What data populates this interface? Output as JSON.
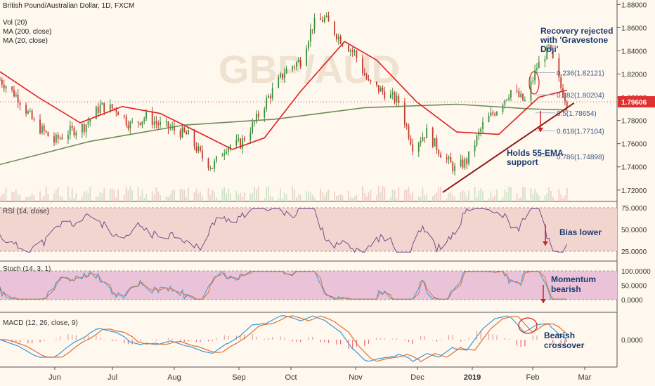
{
  "header": {
    "symbol_line": "British Pound/Australian Dollar, 1D, FXCM",
    "indicators": [
      "Vol (20)",
      "MA (200, close)",
      "MA (20, close)"
    ]
  },
  "watermark": "GBP/AUD",
  "price_axis": {
    "ticks": [
      "1.88000",
      "1.86000",
      "1.84000",
      "1.82000",
      "1.80000",
      "1.78000",
      "1.76000",
      "1.74000",
      "1.72000"
    ]
  },
  "last_price": {
    "value": "1.79606",
    "color": "#e03030"
  },
  "fib_labels": [
    {
      "label": "0.236(1.82121)",
      "value": 1.82121
    },
    {
      "label": "0.382(1.80204)",
      "value": 1.80204
    },
    {
      "label": "0.5(1.78654)",
      "value": 1.78654
    },
    {
      "label": "0.618(1.77104)",
      "value": 1.77104
    },
    {
      "label": "0.786(1.74898)",
      "value": 1.74898
    }
  ],
  "annotations": {
    "recovery": [
      "Recovery rejected",
      "with 'Gravestone",
      "Doji'"
    ],
    "support": [
      "Holds 55-EMA",
      "support"
    ],
    "bias": "Bias lower",
    "momentum": [
      "Momentum",
      "bearish"
    ],
    "crossover": [
      "Bearish",
      "crossover"
    ]
  },
  "rsi_panel": {
    "title": "RSI (14, close)",
    "ticks": [
      "75.0000",
      "50.0000",
      "25.0000"
    ]
  },
  "stoch_panel": {
    "title": "Stoch (14, 3, 1)",
    "ticks": [
      "100.0000",
      "50.0000",
      "0.0000"
    ]
  },
  "macd_panel": {
    "title": "MACD (12, 26, close, 9)",
    "ticks": [
      "0.0000"
    ]
  },
  "time_axis": [
    "Jun",
    "Jul",
    "Aug",
    "Sep",
    "Oct",
    "Nov",
    "Dec",
    "2019",
    "Feb",
    "Mar"
  ],
  "colors": {
    "up": "#3c8c3c",
    "down": "#c0392b",
    "ma20": "#e02020",
    "ma200": "#6e8c5a",
    "rsi": "#7b4a8c",
    "stoch_k": "#3a9ad9",
    "stoch_d": "#e07030",
    "macd": "#3a9ad9",
    "signal": "#e07030",
    "annotation": "#1a3a6e"
  },
  "chart_data": {
    "type": "candlestick",
    "x_range": [
      "2018-05-01",
      "2019-03-05"
    ],
    "y_range": [
      1.712,
      1.882
    ],
    "close_series_approx": [
      [
        "2018-05-01",
        1.815
      ],
      [
        "2018-05-10",
        1.8
      ],
      [
        "2018-05-18",
        1.778
      ],
      [
        "2018-05-28",
        1.762
      ],
      [
        "2018-06-04",
        1.77
      ],
      [
        "2018-06-12",
        1.775
      ],
      [
        "2018-06-20",
        1.792
      ],
      [
        "2018-06-28",
        1.79
      ],
      [
        "2018-07-05",
        1.776
      ],
      [
        "2018-07-13",
        1.783
      ],
      [
        "2018-07-20",
        1.776
      ],
      [
        "2018-07-27",
        1.772
      ],
      [
        "2018-08-03",
        1.767
      ],
      [
        "2018-08-10",
        1.748
      ],
      [
        "2018-08-15",
        1.74
      ],
      [
        "2018-08-22",
        1.758
      ],
      [
        "2018-08-29",
        1.76
      ],
      [
        "2018-09-05",
        1.778
      ],
      [
        "2018-09-12",
        1.8
      ],
      [
        "2018-09-20",
        1.822
      ],
      [
        "2018-09-28",
        1.832
      ],
      [
        "2018-10-04",
        1.862
      ],
      [
        "2018-10-10",
        1.868
      ],
      [
        "2018-10-17",
        1.852
      ],
      [
        "2018-10-25",
        1.838
      ],
      [
        "2018-11-01",
        1.812
      ],
      [
        "2018-11-09",
        1.804
      ],
      [
        "2018-11-16",
        1.796
      ],
      [
        "2018-11-23",
        1.758
      ],
      [
        "2018-11-30",
        1.77
      ],
      [
        "2018-12-07",
        1.752
      ],
      [
        "2018-12-14",
        1.738
      ],
      [
        "2018-12-20",
        1.745
      ],
      [
        "2018-12-28",
        1.776
      ],
      [
        "2019-01-04",
        1.79
      ],
      [
        "2019-01-11",
        1.806
      ],
      [
        "2019-01-18",
        1.796
      ],
      [
        "2019-01-24",
        1.826
      ],
      [
        "2019-01-30",
        1.842
      ],
      [
        "2019-02-05",
        1.808
      ],
      [
        "2019-02-08",
        1.796
      ]
    ],
    "ma20_approx": [
      [
        "2018-05-01",
        1.822
      ],
      [
        "2018-05-20",
        1.8
      ],
      [
        "2018-06-10",
        1.778
      ],
      [
        "2018-07-01",
        1.792
      ],
      [
        "2018-07-20",
        1.786
      ],
      [
        "2018-08-10",
        1.768
      ],
      [
        "2018-08-25",
        1.755
      ],
      [
        "2018-09-10",
        1.765
      ],
      [
        "2018-09-28",
        1.805
      ],
      [
        "2018-10-20",
        1.848
      ],
      [
        "2018-11-05",
        1.832
      ],
      [
        "2018-11-25",
        1.796
      ],
      [
        "2018-12-15",
        1.77
      ],
      [
        "2019-01-05",
        1.768
      ],
      [
        "2019-01-25",
        1.8
      ],
      [
        "2019-02-08",
        1.806
      ]
    ],
    "ma200_approx": [
      [
        "2018-05-01",
        1.742
      ],
      [
        "2018-06-15",
        1.762
      ],
      [
        "2018-08-01",
        1.776
      ],
      [
        "2018-09-15",
        1.781
      ],
      [
        "2018-10-30",
        1.791
      ],
      [
        "2018-12-15",
        1.794
      ],
      [
        "2019-01-20",
        1.79
      ],
      [
        "2019-02-08",
        1.789
      ]
    ],
    "trendline": [
      [
        "2018-12-08",
        1.718
      ],
      [
        "2019-02-08",
        1.792
      ]
    ],
    "rsi_range": [
      25,
      75
    ],
    "stoch_range": [
      0,
      100
    ]
  }
}
